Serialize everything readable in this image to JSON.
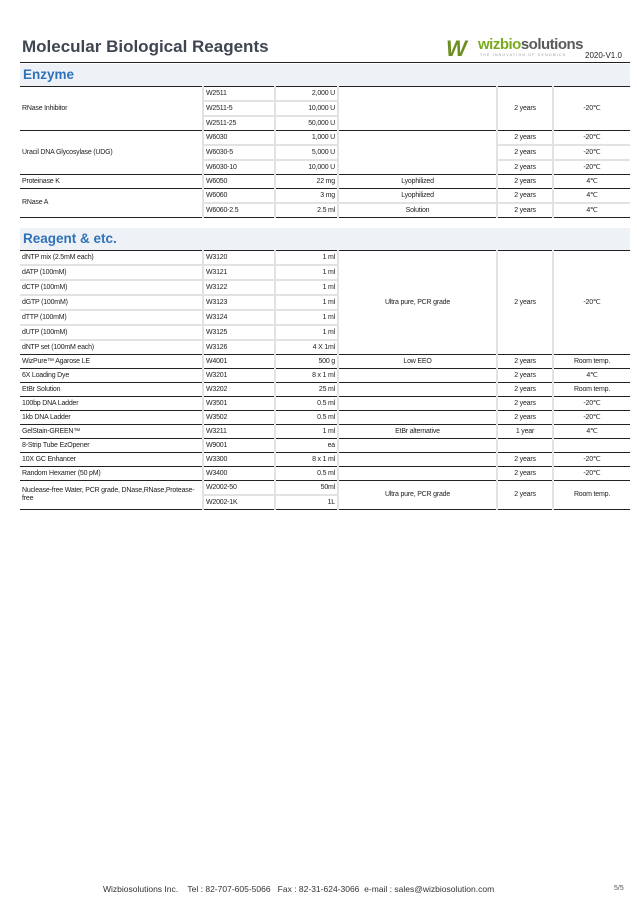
{
  "header": {
    "title": "Molecular Biological Reagents",
    "logo_brand_a": "wizbio",
    "logo_brand_b": "solutions",
    "logo_tagline": "THE INNOVATION OF GENOMICS",
    "version": "2020-V1.0",
    "colors": {
      "title": "#3f4652",
      "section": "#2f72b8",
      "logo_green": "#7aab1e"
    }
  },
  "sections": [
    {
      "title": "Enzyme",
      "groups": [
        {
          "merged": {
            "name": "RNase Inhibitor",
            "desc": "",
            "shelf": "2 years",
            "storage": "-20℃"
          },
          "rows": [
            {
              "cat": "W2511",
              "size": "2,000 U"
            },
            {
              "cat": "W2511-5",
              "size": "10,000 U"
            },
            {
              "cat": "W2511-25",
              "size": "50,000 U"
            }
          ]
        },
        {
          "merged": {
            "name": "Uracil DNA Glycosylase (UDG)",
            "desc": ""
          },
          "rows": [
            {
              "cat": "W6030",
              "size": "1,000 U",
              "shelf": "2 years",
              "storage": "-20℃"
            },
            {
              "cat": "W6030-5",
              "size": "5,000 U",
              "shelf": "2 years",
              "storage": "-20℃"
            },
            {
              "cat": "W6030-10",
              "size": "10,000 U",
              "shelf": "2 years",
              "storage": "-20℃"
            }
          ]
        },
        {
          "merged": {},
          "rows": [
            {
              "name": "Proteinase K",
              "cat": "W6050",
              "size": "22 mg",
              "desc": "Lyophilized",
              "shelf": "2 years",
              "storage": "4℃"
            }
          ]
        },
        {
          "merged": {
            "name": "RNase A"
          },
          "rows": [
            {
              "cat": "W6060",
              "size": "3 mg",
              "desc": "Lyophilized",
              "shelf": "2 years",
              "storage": "4℃"
            },
            {
              "cat": "W6060-2.5",
              "size": "2.5 ml",
              "desc": "Solution",
              "shelf": "2 years",
              "storage": "4℃"
            }
          ]
        }
      ]
    },
    {
      "title": "Reagent & etc.",
      "groups": [
        {
          "merged": {
            "desc": "Ultra pure, PCR grade",
            "shelf": "2 years",
            "storage": "-20℃"
          },
          "rows": [
            {
              "name": "dNTP mix (2.5mM each)",
              "cat": "W3120",
              "size": "1 ml"
            },
            {
              "name": "dATP (100mM)",
              "cat": "W3121",
              "size": "1 ml"
            },
            {
              "name": "dCTP (100mM)",
              "cat": "W3122",
              "size": "1 ml"
            },
            {
              "name": "dGTP (100mM)",
              "cat": "W3123",
              "size": "1 ml"
            },
            {
              "name": "dTTP (100mM)",
              "cat": "W3124",
              "size": "1 ml"
            },
            {
              "name": "dUTP (100mM)",
              "cat": "W3125",
              "size": "1 ml"
            },
            {
              "name": "dNTP set (100mM each)",
              "cat": "W3126",
              "size": "4 X 1ml"
            }
          ]
        },
        {
          "merged": {},
          "rows": [
            {
              "name": "WizPure™ Agarose LE",
              "cat": "W4001",
              "size": "500 g",
              "desc": "Low EEO",
              "shelf": "2 years",
              "storage": "Room temp."
            }
          ]
        },
        {
          "merged": {},
          "thin": true,
          "rows": [
            {
              "name": "6X Loading Dye",
              "cat": "W3201",
              "size": "8 x 1 ml",
              "desc": "",
              "shelf": "2 years",
              "storage": "4℃"
            },
            {
              "name": "EtBr Solution",
              "cat": "W3202",
              "size": "25 ml",
              "desc": "",
              "shelf": "2 years",
              "storage": "Room temp."
            },
            {
              "name": "100bp DNA Ladder",
              "cat": "W3501",
              "size": "0.5 ml",
              "desc": "",
              "shelf": "2 years",
              "storage": "-20℃"
            },
            {
              "name": "1kb DNA Ladder",
              "cat": "W3502",
              "size": "0.5 ml",
              "desc": "",
              "shelf": "2 years",
              "storage": "-20℃"
            },
            {
              "name": "GelStain-GREEN™",
              "cat": "W3211",
              "size": "1 ml",
              "desc": "EtBr alternative",
              "shelf": "1 year",
              "storage": "4℃"
            },
            {
              "name": "8-Strip Tube EzOpener",
              "cat": "W9001",
              "size": "ea",
              "desc": "",
              "shelf": "",
              "storage": ""
            },
            {
              "name": "10X GC Enhancer",
              "cat": "W3300",
              "size": "8 x 1 ml",
              "desc": "",
              "shelf": "2 years",
              "storage": "-20℃"
            },
            {
              "name": "Random Hexamer (50 pM)",
              "cat": "W3400",
              "size": "0.5 ml",
              "desc": "",
              "shelf": "2 years",
              "storage": "-20℃"
            }
          ]
        },
        {
          "merged": {
            "name": "Nuclease-free Water, PCR grade, DNase,RNase,Protease-free",
            "desc": "Ultra pure, PCR grade",
            "shelf": "2 years",
            "storage": "Room temp."
          },
          "rows": [
            {
              "cat": "W2002-50",
              "size": "50ml"
            },
            {
              "cat": "W2002-1K",
              "size": "1L"
            }
          ]
        }
      ]
    }
  ],
  "footer": {
    "text": "Wizbiosolutions Inc.    Tel : 82-707-605-5066   Fax : 82-31-624-3066  e-mail : sales@wizbiosolution.com",
    "page": "5/5"
  }
}
